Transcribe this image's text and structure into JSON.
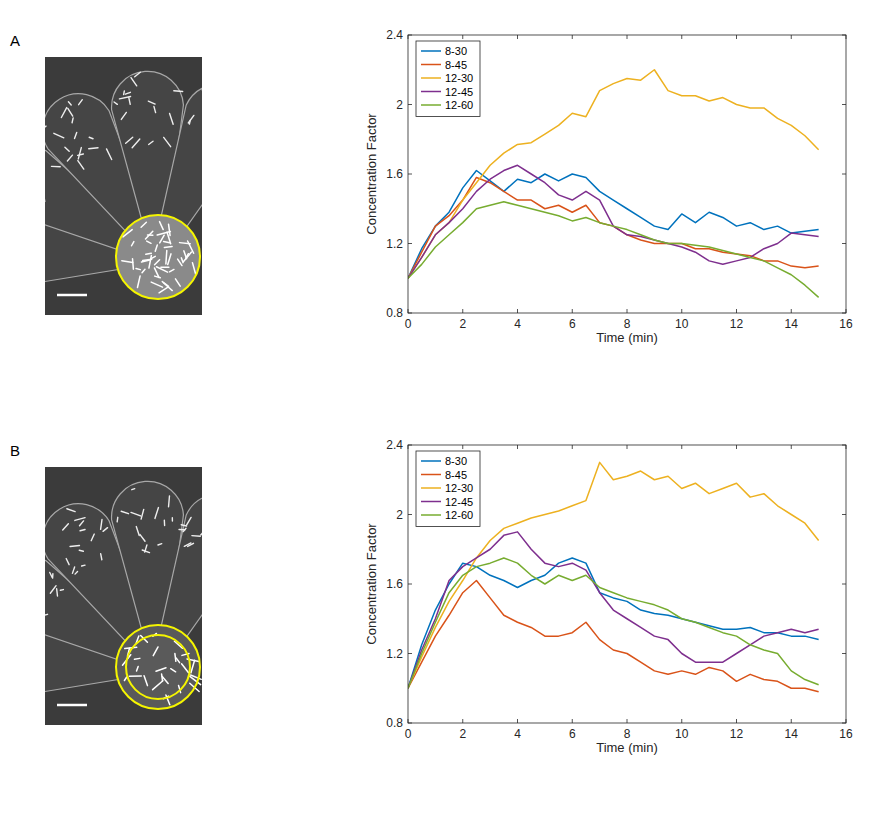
{
  "chart_data": [
    {
      "type": "line",
      "panel": "A",
      "x_label": "Time (min)",
      "y_label": "Concentration Factor",
      "xlim": [
        0,
        16
      ],
      "xticks": [
        0,
        2,
        4,
        6,
        8,
        10,
        12,
        14,
        16
      ],
      "ylim": [
        0.8,
        2.4
      ],
      "yticks": [
        0.8,
        1.2,
        1.6,
        2,
        2.4
      ],
      "legend": "upper left",
      "x": [
        0,
        0.5,
        1,
        1.5,
        2,
        2.5,
        3,
        3.5,
        4,
        4.5,
        5,
        5.5,
        6,
        6.5,
        7,
        7.5,
        8,
        8.5,
        9,
        9.5,
        10,
        10.5,
        11,
        11.5,
        12,
        12.5,
        13,
        13.5,
        14,
        14.5,
        15
      ],
      "series": [
        {
          "name": "8-30",
          "color": "#0072bd",
          "values": [
            1.0,
            1.17,
            1.3,
            1.38,
            1.52,
            1.62,
            1.56,
            1.5,
            1.57,
            1.55,
            1.6,
            1.56,
            1.6,
            1.58,
            1.5,
            1.45,
            1.4,
            1.35,
            1.3,
            1.28,
            1.37,
            1.32,
            1.38,
            1.35,
            1.3,
            1.32,
            1.28,
            1.3,
            1.26,
            1.27,
            1.28
          ]
        },
        {
          "name": "8-45",
          "color": "#d95319",
          "values": [
            1.0,
            1.15,
            1.3,
            1.36,
            1.45,
            1.58,
            1.55,
            1.5,
            1.45,
            1.45,
            1.4,
            1.42,
            1.38,
            1.42,
            1.32,
            1.3,
            1.25,
            1.22,
            1.2,
            1.2,
            1.2,
            1.17,
            1.17,
            1.15,
            1.14,
            1.13,
            1.1,
            1.1,
            1.07,
            1.06,
            1.07
          ]
        },
        {
          "name": "12-30",
          "color": "#edb120",
          "values": [
            1.0,
            1.12,
            1.25,
            1.32,
            1.45,
            1.55,
            1.65,
            1.72,
            1.77,
            1.78,
            1.83,
            1.88,
            1.95,
            1.93,
            2.08,
            2.12,
            2.15,
            2.14,
            2.2,
            2.08,
            2.05,
            2.05,
            2.02,
            2.04,
            2.0,
            1.98,
            1.98,
            1.92,
            1.88,
            1.82,
            1.74
          ]
        },
        {
          "name": "12-45",
          "color": "#7e2f8e",
          "values": [
            1.0,
            1.12,
            1.25,
            1.32,
            1.4,
            1.5,
            1.57,
            1.62,
            1.65,
            1.6,
            1.55,
            1.48,
            1.45,
            1.5,
            1.45,
            1.3,
            1.25,
            1.24,
            1.22,
            1.2,
            1.18,
            1.15,
            1.1,
            1.08,
            1.1,
            1.12,
            1.17,
            1.2,
            1.26,
            1.25,
            1.24
          ]
        },
        {
          "name": "12-60",
          "color": "#77ac30",
          "values": [
            1.0,
            1.08,
            1.18,
            1.25,
            1.32,
            1.4,
            1.42,
            1.44,
            1.42,
            1.4,
            1.38,
            1.36,
            1.33,
            1.35,
            1.32,
            1.3,
            1.28,
            1.25,
            1.22,
            1.2,
            1.2,
            1.19,
            1.18,
            1.16,
            1.14,
            1.12,
            1.1,
            1.06,
            1.02,
            0.96,
            0.89
          ]
        }
      ]
    },
    {
      "type": "line",
      "panel": "B",
      "x_label": "Time (min)",
      "y_label": "Concentration Factor",
      "xlim": [
        0,
        16
      ],
      "xticks": [
        0,
        2,
        4,
        6,
        8,
        10,
        12,
        14,
        16
      ],
      "ylim": [
        0.8,
        2.4
      ],
      "yticks": [
        0.8,
        1.2,
        1.6,
        2,
        2.4
      ],
      "legend": "upper left",
      "x": [
        0,
        0.5,
        1,
        1.5,
        2,
        2.5,
        3,
        3.5,
        4,
        4.5,
        5,
        5.5,
        6,
        6.5,
        7,
        7.5,
        8,
        8.5,
        9,
        9.5,
        10,
        10.5,
        11,
        11.5,
        12,
        12.5,
        13,
        13.5,
        14,
        14.5,
        15
      ],
      "series": [
        {
          "name": "8-30",
          "color": "#0072bd",
          "values": [
            1.0,
            1.25,
            1.45,
            1.6,
            1.72,
            1.7,
            1.65,
            1.62,
            1.58,
            1.62,
            1.65,
            1.72,
            1.75,
            1.72,
            1.55,
            1.52,
            1.5,
            1.45,
            1.43,
            1.42,
            1.4,
            1.38,
            1.36,
            1.34,
            1.34,
            1.35,
            1.32,
            1.32,
            1.3,
            1.3,
            1.28
          ]
        },
        {
          "name": "8-45",
          "color": "#d95319",
          "values": [
            1.0,
            1.15,
            1.3,
            1.42,
            1.55,
            1.62,
            1.52,
            1.42,
            1.38,
            1.35,
            1.3,
            1.3,
            1.32,
            1.38,
            1.28,
            1.22,
            1.2,
            1.15,
            1.1,
            1.08,
            1.1,
            1.08,
            1.12,
            1.1,
            1.04,
            1.08,
            1.05,
            1.04,
            1.0,
            1.0,
            0.98
          ]
        },
        {
          "name": "12-30",
          "color": "#edb120",
          "values": [
            1.0,
            1.18,
            1.35,
            1.5,
            1.62,
            1.75,
            1.85,
            1.92,
            1.95,
            1.98,
            2.0,
            2.02,
            2.05,
            2.08,
            2.3,
            2.2,
            2.22,
            2.25,
            2.2,
            2.22,
            2.15,
            2.18,
            2.12,
            2.15,
            2.18,
            2.1,
            2.12,
            2.05,
            2.0,
            1.95,
            1.85
          ]
        },
        {
          "name": "12-45",
          "color": "#7e2f8e",
          "values": [
            1.0,
            1.22,
            1.4,
            1.62,
            1.7,
            1.75,
            1.8,
            1.88,
            1.9,
            1.8,
            1.72,
            1.7,
            1.72,
            1.68,
            1.55,
            1.45,
            1.4,
            1.35,
            1.3,
            1.28,
            1.2,
            1.15,
            1.15,
            1.15,
            1.2,
            1.25,
            1.3,
            1.32,
            1.34,
            1.32,
            1.34
          ]
        },
        {
          "name": "12-60",
          "color": "#77ac30",
          "values": [
            1.0,
            1.2,
            1.38,
            1.55,
            1.65,
            1.7,
            1.72,
            1.75,
            1.72,
            1.65,
            1.6,
            1.65,
            1.62,
            1.65,
            1.58,
            1.55,
            1.52,
            1.5,
            1.48,
            1.45,
            1.4,
            1.38,
            1.35,
            1.32,
            1.3,
            1.25,
            1.22,
            1.2,
            1.1,
            1.05,
            1.02
          ]
        }
      ]
    }
  ]
}
